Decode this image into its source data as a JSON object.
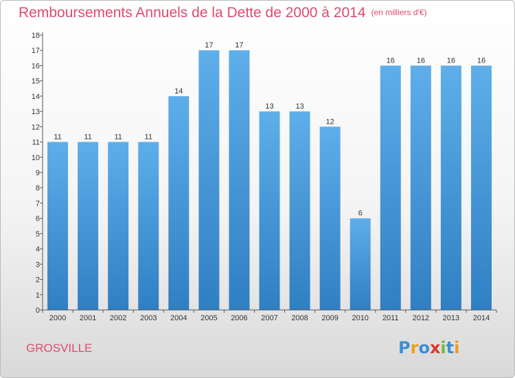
{
  "header": {
    "title": "Remboursements Annuels de la Dette de 2000 à 2014",
    "unit": "(en milliers d'€)"
  },
  "footer": {
    "place": "GROSVILLE",
    "logo_text": "Proxiti",
    "logo_colors": [
      "#3a8fd6",
      "#f19a1e",
      "#3a8fd6",
      "#e2342f",
      "#6bbf3a",
      "#3a8fd6",
      "#f19a1e"
    ]
  },
  "chart_data": {
    "type": "bar",
    "categories": [
      "2000",
      "2001",
      "2002",
      "2003",
      "2004",
      "2005",
      "2006",
      "2007",
      "2008",
      "2009",
      "2010",
      "2011",
      "2012",
      "2013",
      "2014"
    ],
    "values": [
      11,
      11,
      11,
      11,
      14,
      17,
      17,
      13,
      13,
      12,
      6,
      16,
      16,
      16,
      16
    ],
    "data_labels": [
      "11",
      "11",
      "11",
      "11",
      "14",
      "17",
      "17",
      "13",
      "13",
      "12",
      "6",
      "16",
      "16",
      "16",
      "16"
    ],
    "yticks": [
      "0",
      "1",
      "2",
      "3",
      "4",
      "5",
      "6",
      "7",
      "8",
      "9",
      "10",
      "11",
      "12",
      "13",
      "14",
      "15",
      "16",
      "17",
      "18"
    ],
    "ylim": [
      0,
      18
    ],
    "grid": false,
    "bar_color_top": "#5eaeea",
    "bar_color_bottom": "#2f7fc3",
    "axis_color": "#555555"
  }
}
